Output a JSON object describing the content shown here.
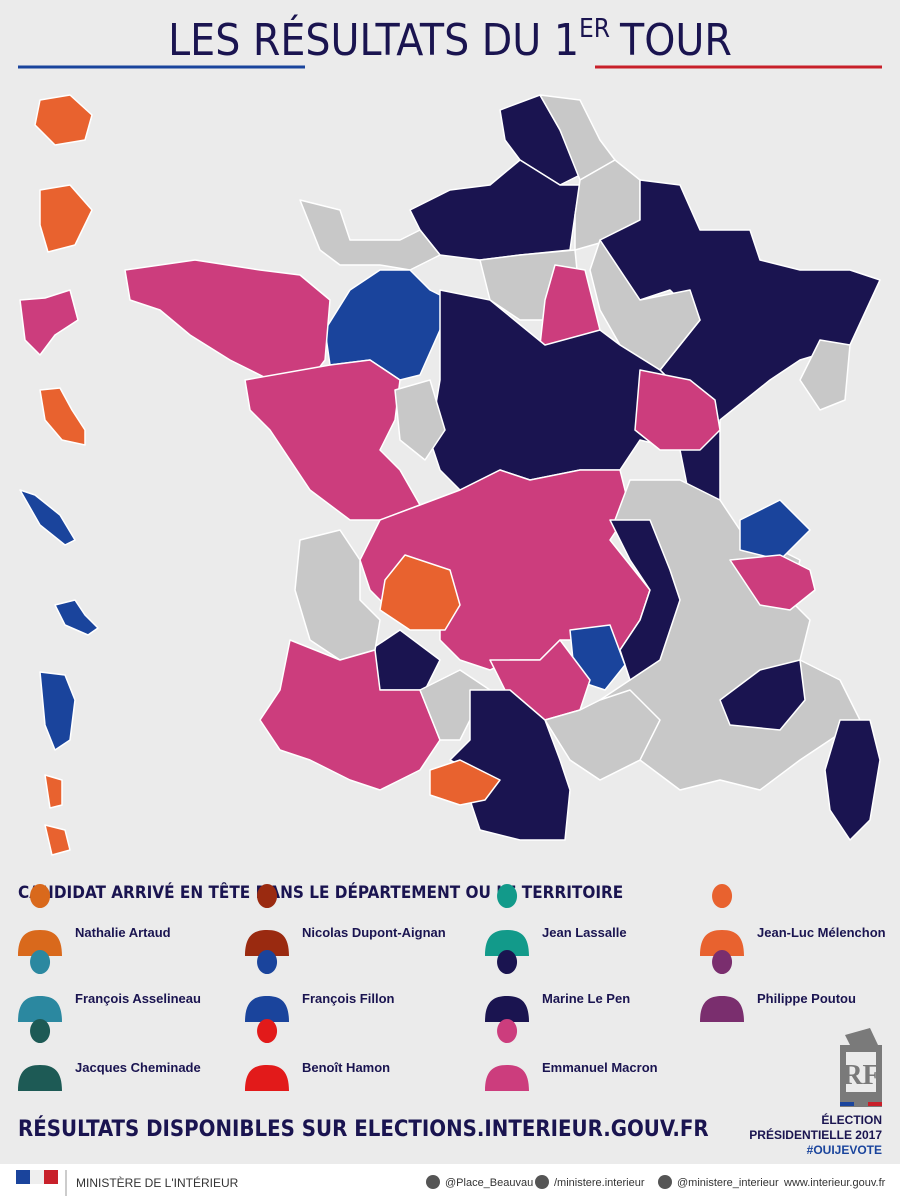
{
  "header": {
    "title_main": "LES RÉSULTATS DU 1",
    "title_sup": "ER",
    "title_end": "TOUR"
  },
  "legend": {
    "heading": "CANDIDAT ARRIVÉ EN TÊTE DANS LE DÉPARTEMENT OU LE TERRITOIRE",
    "items": [
      {
        "name": "Nathalie Artaud",
        "color": "#d9691c"
      },
      {
        "name": "Nicolas Dupont-Aignan",
        "color": "#9a2a10"
      },
      {
        "name": "Jean Lassalle",
        "color": "#129a8a"
      },
      {
        "name": "Jean-Luc Mélenchon",
        "color": "#e8622f"
      },
      {
        "name": "François Asselineau",
        "color": "#2b88a0"
      },
      {
        "name": "François Fillon",
        "color": "#1a449c"
      },
      {
        "name": "Marine Le Pen",
        "color": "#1a1450"
      },
      {
        "name": "Philippe Poutou",
        "color": "#7a2e6e"
      },
      {
        "name": "Jacques Cheminade",
        "color": "#1d5a55"
      },
      {
        "name": "Benoît Hamon",
        "color": "#e21a1a"
      },
      {
        "name": "Emmanuel Macron",
        "color": "#cc3d7d"
      }
    ]
  },
  "footer": {
    "results": "RÉSULTATS DISPONIBLES SUR ELECTIONS.INTERIEUR.GOUV.FR",
    "election": "ÉLECTION",
    "presidential": "PRÉSIDENTIELLE 2017",
    "hashtag": "#OUIJEVOTE",
    "ministry": "MINISTÈRE DE L'INTÉRIEUR",
    "twitter": "@Place_Beauvau",
    "facebook": "/ministere.interieur",
    "instagram": "@ministere_interieur",
    "website": "www.interieur.gouv.fr"
  }
}
